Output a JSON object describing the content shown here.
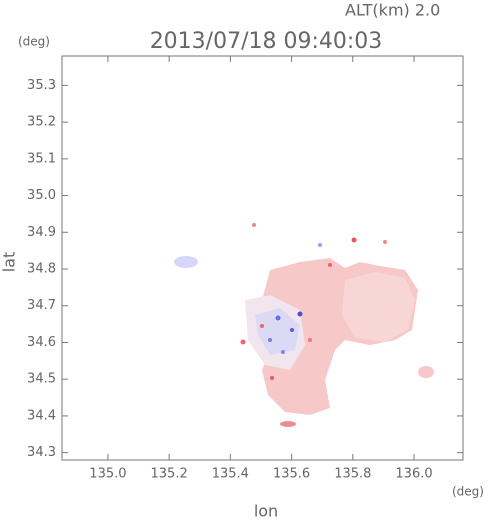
{
  "chart_data": {
    "type": "radar-field",
    "title": "2013/07/18 09:40:03",
    "subtitle": "ALT(km) 2.0",
    "y_unit": "(deg)",
    "x_unit": "(deg)",
    "x_label": "lon",
    "y_label": "lat",
    "xlim": [
      134.85,
      136.16
    ],
    "ylim": [
      34.28,
      35.38
    ],
    "xticks": [
      {
        "value": 135,
        "label": "135.0"
      },
      135.2,
      135.4,
      135.6,
      135.8,
      {
        "value": 136,
        "label": "136.0"
      }
    ],
    "yticks": [
      34.3,
      34.4,
      34.5,
      34.6,
      34.7,
      34.8,
      34.9,
      {
        "value": 35,
        "label": "35.0"
      },
      35.1,
      35.2,
      35.3
    ]
  }
}
